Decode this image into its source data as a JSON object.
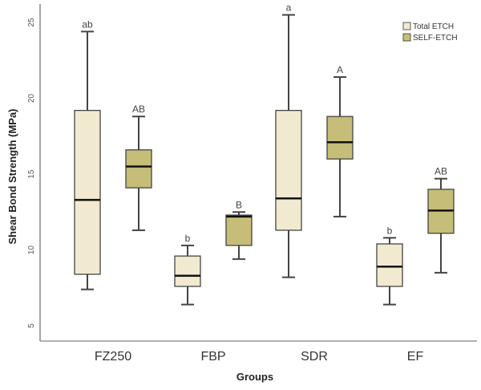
{
  "chart_data": {
    "type": "box",
    "title": "",
    "xlabel": "Groups",
    "ylabel": "Shear Bond Strength (MPa)",
    "ylim": [
      4,
      26
    ],
    "yticks": [
      5,
      10,
      15,
      20,
      25
    ],
    "categories": [
      "FZ250",
      "FBP",
      "SDR",
      "EF"
    ],
    "grid": false,
    "legend_position": "top-right",
    "series": [
      {
        "name": "Total ETCH",
        "color": "#f1ead0",
        "boxes": [
          {
            "min": 7.4,
            "q1": 8.4,
            "median": 13.3,
            "q3": 19.2,
            "max": 24.4,
            "label": "ab"
          },
          {
            "min": 6.4,
            "q1": 7.6,
            "median": 8.3,
            "q3": 9.6,
            "max": 10.3,
            "label": "b"
          },
          {
            "min": 8.2,
            "q1": 11.3,
            "median": 13.4,
            "q3": 19.2,
            "max": 25.5,
            "label": "a"
          },
          {
            "min": 6.4,
            "q1": 7.6,
            "median": 8.9,
            "q3": 10.4,
            "max": 10.8,
            "label": "b"
          }
        ]
      },
      {
        "name": "SELF-ETCH",
        "color": "#c6bd78",
        "boxes": [
          {
            "min": 11.3,
            "q1": 14.1,
            "median": 15.5,
            "q3": 16.6,
            "max": 18.8,
            "label": "AB"
          },
          {
            "min": 9.4,
            "q1": 10.3,
            "median": 12.2,
            "q3": 12.3,
            "max": 12.5,
            "label": "B"
          },
          {
            "min": 12.2,
            "q1": 16.0,
            "median": 17.1,
            "q3": 18.8,
            "max": 21.4,
            "label": "A"
          },
          {
            "min": 8.5,
            "q1": 11.1,
            "median": 12.6,
            "q3": 14.0,
            "max": 14.7,
            "label": "AB"
          }
        ]
      }
    ]
  }
}
